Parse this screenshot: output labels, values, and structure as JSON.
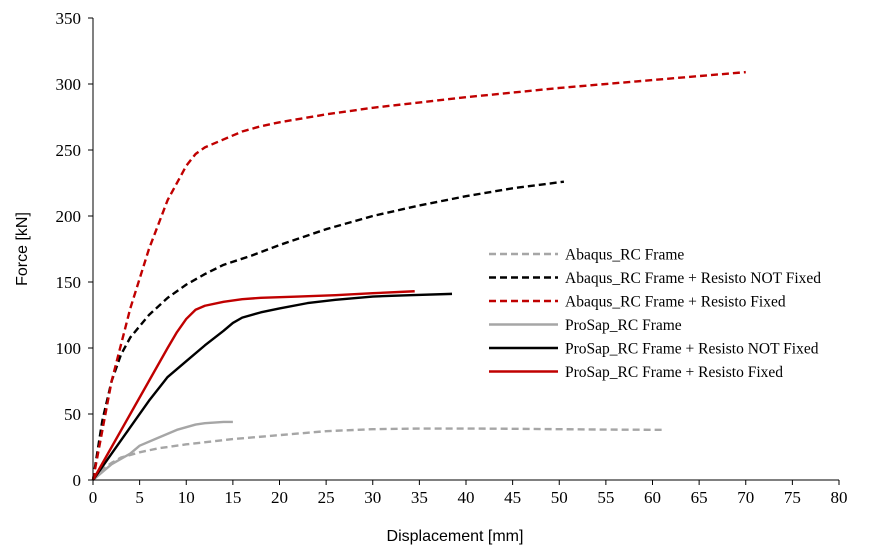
{
  "chart_data": {
    "type": "line",
    "title": "",
    "xlabel": "Displacement [mm]",
    "ylabel": "Force [kN]",
    "xlim": [
      0,
      80
    ],
    "ylim": [
      0,
      350
    ],
    "xticks": [
      "0",
      "5",
      "10",
      "15",
      "20",
      "25",
      "30",
      "35",
      "40",
      "45",
      "50",
      "55",
      "60",
      "65",
      "70",
      "75",
      "80"
    ],
    "yticks": [
      "0",
      "50",
      "100",
      "150",
      "200",
      "250",
      "300",
      "350"
    ],
    "grid": false,
    "legend_position": "right",
    "series": [
      {
        "name": "Abaqus_RC Frame",
        "color": "#a6a6a6",
        "dash": "dashed",
        "points": [
          [
            0,
            0
          ],
          [
            1,
            8
          ],
          [
            2,
            13
          ],
          [
            3,
            17
          ],
          [
            4,
            19
          ],
          [
            5,
            21
          ],
          [
            7,
            24
          ],
          [
            10,
            27
          ],
          [
            15,
            31
          ],
          [
            20,
            34
          ],
          [
            25,
            37
          ],
          [
            30,
            38.5
          ],
          [
            35,
            39
          ],
          [
            40,
            39
          ],
          [
            45,
            38.8
          ],
          [
            50,
            38.5
          ],
          [
            55,
            38.2
          ],
          [
            61,
            38
          ]
        ]
      },
      {
        "name": "Abaqus_RC Frame + Resisto NOT Fixed",
        "color": "#000000",
        "dash": "dashed",
        "points": [
          [
            0,
            0
          ],
          [
            1,
            45
          ],
          [
            2,
            75
          ],
          [
            3,
            95
          ],
          [
            4,
            108
          ],
          [
            6,
            125
          ],
          [
            8,
            138
          ],
          [
            10,
            148
          ],
          [
            12,
            156
          ],
          [
            14,
            163
          ],
          [
            17,
            170
          ],
          [
            20,
            178
          ],
          [
            25,
            190
          ],
          [
            30,
            200
          ],
          [
            35,
            208
          ],
          [
            40,
            215
          ],
          [
            45,
            221
          ],
          [
            50.5,
            226
          ]
        ]
      },
      {
        "name": "Abaqus_RC Frame + Resisto Fixed",
        "color": "#c00000",
        "dash": "dashed",
        "points": [
          [
            0,
            0
          ],
          [
            2,
            75
          ],
          [
            4,
            130
          ],
          [
            6,
            175
          ],
          [
            8,
            212
          ],
          [
            10,
            238
          ],
          [
            11,
            247
          ],
          [
            12,
            252
          ],
          [
            14,
            258
          ],
          [
            16,
            264
          ],
          [
            18,
            268
          ],
          [
            20,
            271
          ],
          [
            25,
            277
          ],
          [
            30,
            282
          ],
          [
            40,
            290
          ],
          [
            50,
            297
          ],
          [
            60,
            303
          ],
          [
            70,
            309
          ]
        ]
      },
      {
        "name": "ProSap_RC Frame",
        "color": "#a6a6a6",
        "dash": "solid",
        "points": [
          [
            0,
            0
          ],
          [
            2,
            12
          ],
          [
            4,
            20
          ],
          [
            5,
            26
          ],
          [
            7,
            32
          ],
          [
            9,
            38
          ],
          [
            10,
            40
          ],
          [
            11,
            42
          ],
          [
            12,
            43
          ],
          [
            13,
            43.5
          ],
          [
            14,
            44
          ],
          [
            15,
            44
          ]
        ]
      },
      {
        "name": "ProSap_RC Frame + Resisto NOT Fixed",
        "color": "#000000",
        "dash": "solid",
        "points": [
          [
            0,
            0
          ],
          [
            2,
            20
          ],
          [
            4,
            40
          ],
          [
            6,
            60
          ],
          [
            8,
            78
          ],
          [
            10,
            90
          ],
          [
            12,
            102
          ],
          [
            14,
            113
          ],
          [
            15,
            119
          ],
          [
            16,
            123
          ],
          [
            18,
            127
          ],
          [
            20,
            130
          ],
          [
            23,
            134
          ],
          [
            26,
            136.5
          ],
          [
            30,
            139
          ],
          [
            34,
            140
          ],
          [
            38.5,
            141
          ]
        ]
      },
      {
        "name": "ProSap_RC Frame + Resisto Fixed",
        "color": "#c00000",
        "dash": "solid",
        "points": [
          [
            0,
            0
          ],
          [
            2,
            25
          ],
          [
            4,
            50
          ],
          [
            6,
            75
          ],
          [
            8,
            100
          ],
          [
            9,
            112
          ],
          [
            10,
            122
          ],
          [
            11,
            129
          ],
          [
            12,
            132
          ],
          [
            14,
            135
          ],
          [
            16,
            137
          ],
          [
            18,
            138
          ],
          [
            22,
            139
          ],
          [
            26,
            140
          ],
          [
            30,
            141.5
          ],
          [
            34.5,
            143
          ]
        ]
      }
    ]
  }
}
